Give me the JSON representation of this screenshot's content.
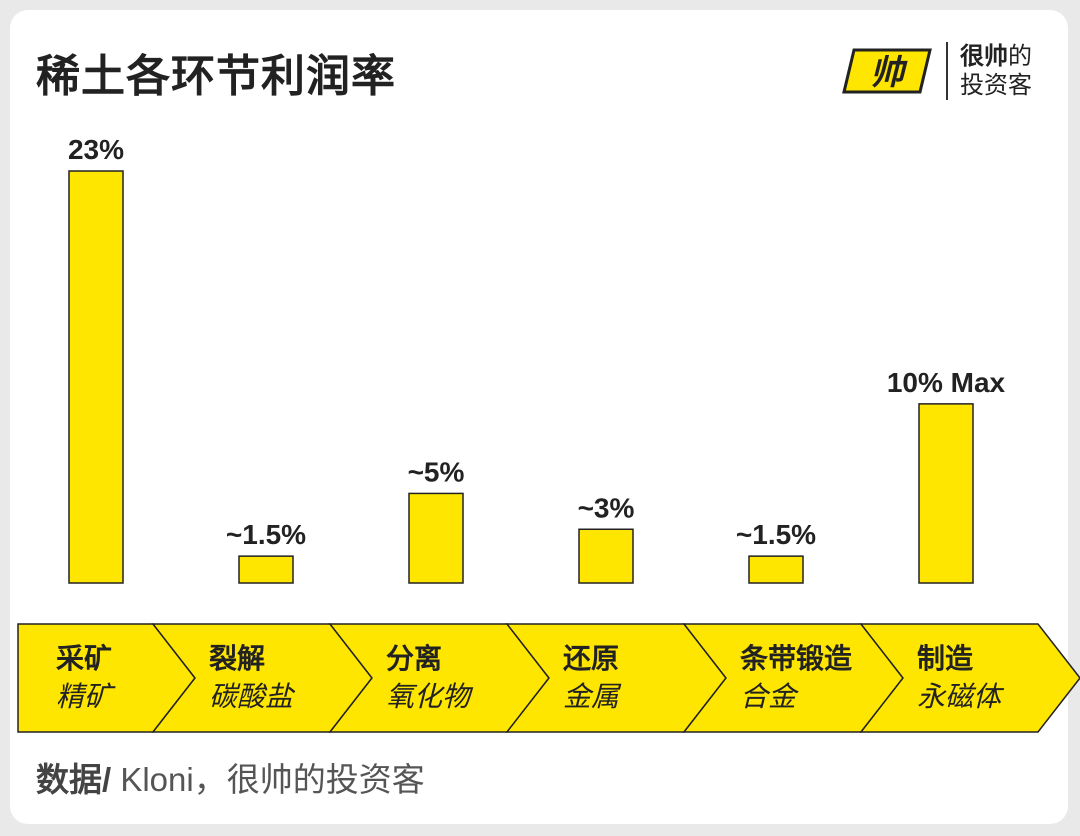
{
  "header": {
    "title": "稀土各环节利润率"
  },
  "brand": {
    "mark_text": "帅",
    "line1_bold": "很帅",
    "line1_rest": "的",
    "line2": "投资客"
  },
  "source": {
    "label": "数据/",
    "text": " Kloni，很帅的投资客"
  },
  "colors": {
    "bar": "#ffe600",
    "arrow": "#ffe600",
    "stroke": "#222222",
    "text": "#222222"
  },
  "chart_data": {
    "type": "bar",
    "categories": [
      "采矿",
      "裂解",
      "分离",
      "还原",
      "条带锻造",
      "制造"
    ],
    "sub_labels": [
      "精矿",
      "碳酸盐",
      "氧化物",
      "金属",
      "合金",
      "永磁体"
    ],
    "values": [
      23,
      1.5,
      5,
      3,
      1.5,
      10
    ],
    "value_labels": [
      "23%",
      "~1.5%",
      "~5%",
      "~3%",
      "~1.5%",
      "10% Max"
    ],
    "ylim": [
      0,
      23
    ],
    "grid": false,
    "legend": "none"
  }
}
